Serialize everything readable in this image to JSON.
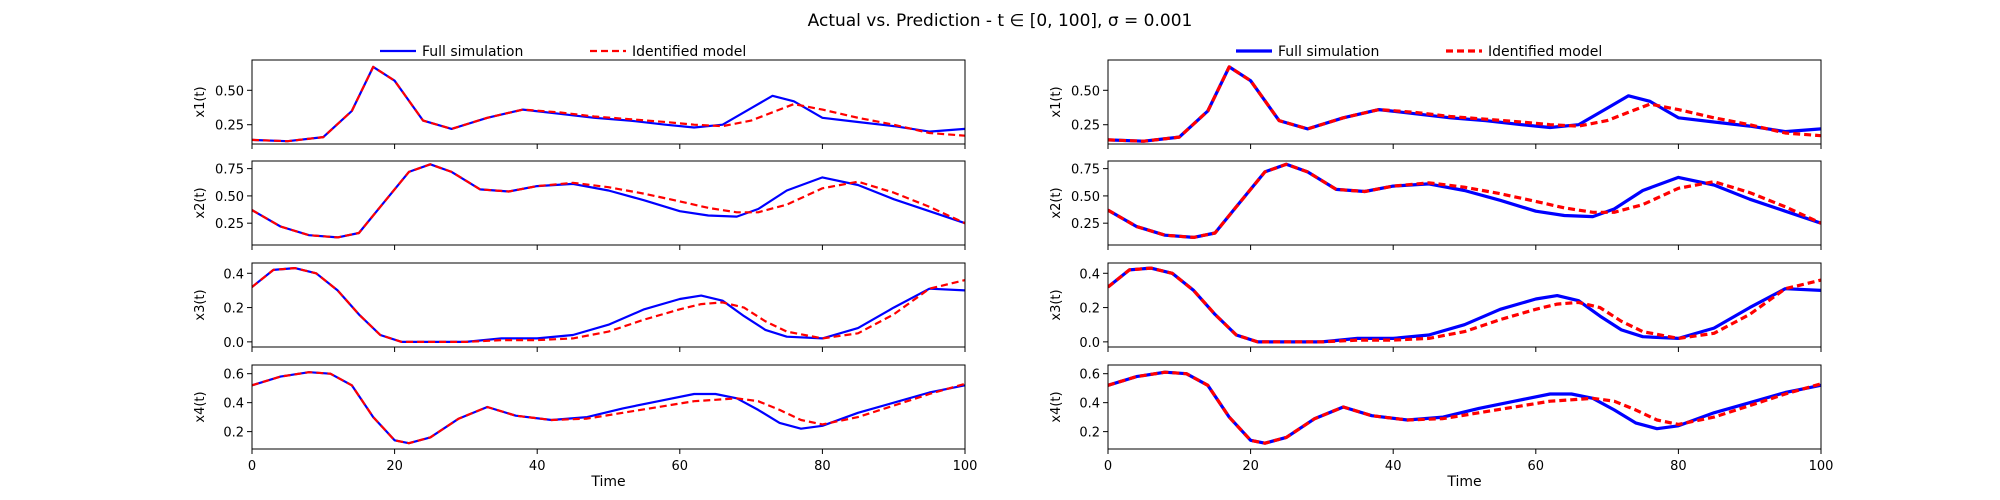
{
  "figure": {
    "title": "Actual vs. Prediction - t ∈ [0, 100], σ = 0.001"
  },
  "legend": {
    "entries": [
      {
        "label": "Full simulation",
        "color": "#0000ff",
        "style": "solid"
      },
      {
        "label": "Identified model",
        "color": "#ff0000",
        "style": "dashed"
      }
    ],
    "placement": "top-center"
  },
  "colors": {
    "full_simulation": "#0000ff",
    "identified_model": "#ff0000"
  },
  "chart_data": [
    {
      "type": "line",
      "column": "left",
      "xlabel": "Time",
      "xlim": [
        0,
        100
      ],
      "xticks": [
        0,
        20,
        40,
        60,
        80,
        100
      ],
      "line_width": "thin",
      "panels": [
        {
          "ylabel": "x1(t)",
          "ylim": [
            0.11,
            0.72
          ],
          "yticks": [
            0.25,
            0.5
          ],
          "x": [
            0,
            5,
            10,
            14,
            17,
            20,
            24,
            28,
            33,
            38,
            43,
            48,
            53,
            58,
            62,
            66,
            70,
            73,
            76,
            80,
            85,
            90,
            95,
            100
          ],
          "series": [
            {
              "name": "Full simulation",
              "values": [
                0.14,
                0.13,
                0.16,
                0.35,
                0.67,
                0.57,
                0.28,
                0.22,
                0.3,
                0.36,
                0.33,
                0.3,
                0.28,
                0.25,
                0.23,
                0.25,
                0.37,
                0.46,
                0.42,
                0.3,
                0.27,
                0.24,
                0.2,
                0.22
              ]
            },
            {
              "name": "Identified model",
              "values": [
                0.14,
                0.13,
                0.16,
                0.35,
                0.67,
                0.57,
                0.28,
                0.22,
                0.3,
                0.36,
                0.34,
                0.31,
                0.29,
                0.27,
                0.25,
                0.24,
                0.28,
                0.34,
                0.4,
                0.36,
                0.3,
                0.25,
                0.19,
                0.17
              ]
            }
          ]
        },
        {
          "ylabel": "x2(t)",
          "ylim": [
            0.05,
            0.82
          ],
          "yticks": [
            0.25,
            0.5,
            0.75
          ],
          "x": [
            0,
            4,
            8,
            12,
            15,
            18,
            22,
            25,
            28,
            32,
            36,
            40,
            45,
            50,
            55,
            60,
            64,
            68,
            71,
            75,
            80,
            85,
            90,
            95,
            100
          ],
          "series": [
            {
              "name": "Full simulation",
              "values": [
                0.37,
                0.22,
                0.14,
                0.12,
                0.16,
                0.4,
                0.72,
                0.79,
                0.72,
                0.56,
                0.54,
                0.59,
                0.61,
                0.55,
                0.46,
                0.36,
                0.32,
                0.31,
                0.38,
                0.55,
                0.67,
                0.6,
                0.47,
                0.36,
                0.25
              ]
            },
            {
              "name": "Identified model",
              "values": [
                0.37,
                0.22,
                0.14,
                0.12,
                0.16,
                0.4,
                0.72,
                0.79,
                0.72,
                0.56,
                0.54,
                0.59,
                0.62,
                0.58,
                0.52,
                0.45,
                0.39,
                0.35,
                0.35,
                0.42,
                0.57,
                0.63,
                0.53,
                0.4,
                0.25
              ]
            }
          ]
        },
        {
          "ylabel": "x3(t)",
          "ylim": [
            -0.03,
            0.46
          ],
          "yticks": [
            0.0,
            0.2,
            0.4
          ],
          "x": [
            0,
            3,
            6,
            9,
            12,
            15,
            18,
            21,
            25,
            30,
            35,
            40,
            45,
            50,
            55,
            60,
            63,
            66,
            69,
            72,
            75,
            80,
            85,
            90,
            95,
            100
          ],
          "series": [
            {
              "name": "Full simulation",
              "values": [
                0.32,
                0.42,
                0.43,
                0.4,
                0.3,
                0.16,
                0.04,
                0.0,
                0.0,
                0.0,
                0.02,
                0.02,
                0.04,
                0.1,
                0.19,
                0.25,
                0.27,
                0.24,
                0.15,
                0.07,
                0.03,
                0.02,
                0.08,
                0.2,
                0.31,
                0.3
              ]
            },
            {
              "name": "Identified model",
              "values": [
                0.32,
                0.42,
                0.43,
                0.4,
                0.3,
                0.16,
                0.04,
                0.0,
                0.0,
                0.0,
                0.01,
                0.01,
                0.02,
                0.06,
                0.13,
                0.19,
                0.22,
                0.23,
                0.2,
                0.12,
                0.06,
                0.02,
                0.05,
                0.16,
                0.31,
                0.36
              ]
            }
          ]
        },
        {
          "ylabel": "x4(t)",
          "ylim": [
            0.08,
            0.66
          ],
          "yticks": [
            0.2,
            0.4,
            0.6
          ],
          "x": [
            0,
            4,
            8,
            11,
            14,
            17,
            20,
            22,
            25,
            29,
            33,
            37,
            42,
            47,
            52,
            57,
            62,
            65,
            68,
            71,
            74,
            77,
            80,
            85,
            90,
            95,
            100
          ],
          "series": [
            {
              "name": "Full simulation",
              "values": [
                0.52,
                0.58,
                0.61,
                0.6,
                0.52,
                0.3,
                0.14,
                0.12,
                0.16,
                0.29,
                0.37,
                0.31,
                0.28,
                0.3,
                0.36,
                0.41,
                0.46,
                0.46,
                0.43,
                0.35,
                0.26,
                0.22,
                0.24,
                0.33,
                0.4,
                0.47,
                0.52
              ]
            },
            {
              "name": "Identified model",
              "values": [
                0.52,
                0.58,
                0.61,
                0.6,
                0.52,
                0.3,
                0.14,
                0.12,
                0.16,
                0.29,
                0.37,
                0.31,
                0.28,
                0.29,
                0.33,
                0.37,
                0.41,
                0.42,
                0.43,
                0.41,
                0.35,
                0.28,
                0.25,
                0.3,
                0.38,
                0.46,
                0.53
              ]
            }
          ]
        }
      ]
    },
    {
      "type": "line",
      "column": "right",
      "xlabel": "Time",
      "xlim": [
        0,
        100
      ],
      "xticks": [
        0,
        20,
        40,
        60,
        80,
        100
      ],
      "line_width": "thick",
      "panels": [
        {
          "ylabel": "x1(t)",
          "ylim": [
            0.11,
            0.72
          ],
          "yticks": [
            0.25,
            0.5
          ],
          "x": [
            0,
            5,
            10,
            14,
            17,
            20,
            24,
            28,
            33,
            38,
            43,
            48,
            53,
            58,
            62,
            66,
            70,
            73,
            76,
            80,
            85,
            90,
            95,
            100
          ],
          "series": [
            {
              "name": "Full simulation",
              "values": [
                0.14,
                0.13,
                0.16,
                0.35,
                0.67,
                0.57,
                0.28,
                0.22,
                0.3,
                0.36,
                0.33,
                0.3,
                0.28,
                0.25,
                0.23,
                0.25,
                0.37,
                0.46,
                0.42,
                0.3,
                0.27,
                0.24,
                0.2,
                0.22
              ]
            },
            {
              "name": "Identified model",
              "values": [
                0.14,
                0.13,
                0.16,
                0.35,
                0.67,
                0.57,
                0.28,
                0.22,
                0.3,
                0.36,
                0.34,
                0.31,
                0.29,
                0.27,
                0.25,
                0.24,
                0.28,
                0.34,
                0.4,
                0.36,
                0.3,
                0.25,
                0.19,
                0.17
              ]
            }
          ]
        },
        {
          "ylabel": "x2(t)",
          "ylim": [
            0.05,
            0.82
          ],
          "yticks": [
            0.25,
            0.5,
            0.75
          ],
          "x": [
            0,
            4,
            8,
            12,
            15,
            18,
            22,
            25,
            28,
            32,
            36,
            40,
            45,
            50,
            55,
            60,
            64,
            68,
            71,
            75,
            80,
            85,
            90,
            95,
            100
          ],
          "series": [
            {
              "name": "Full simulation",
              "values": [
                0.37,
                0.22,
                0.14,
                0.12,
                0.16,
                0.4,
                0.72,
                0.79,
                0.72,
                0.56,
                0.54,
                0.59,
                0.61,
                0.55,
                0.46,
                0.36,
                0.32,
                0.31,
                0.38,
                0.55,
                0.67,
                0.6,
                0.47,
                0.36,
                0.25
              ]
            },
            {
              "name": "Identified model",
              "values": [
                0.37,
                0.22,
                0.14,
                0.12,
                0.16,
                0.4,
                0.72,
                0.79,
                0.72,
                0.56,
                0.54,
                0.59,
                0.62,
                0.58,
                0.52,
                0.45,
                0.39,
                0.35,
                0.35,
                0.42,
                0.57,
                0.63,
                0.53,
                0.4,
                0.25
              ]
            }
          ]
        },
        {
          "ylabel": "x3(t)",
          "ylim": [
            -0.03,
            0.46
          ],
          "yticks": [
            0.0,
            0.2,
            0.4
          ],
          "x": [
            0,
            3,
            6,
            9,
            12,
            15,
            18,
            21,
            25,
            30,
            35,
            40,
            45,
            50,
            55,
            60,
            63,
            66,
            69,
            72,
            75,
            80,
            85,
            90,
            95,
            100
          ],
          "series": [
            {
              "name": "Full simulation",
              "values": [
                0.32,
                0.42,
                0.43,
                0.4,
                0.3,
                0.16,
                0.04,
                0.0,
                0.0,
                0.0,
                0.02,
                0.02,
                0.04,
                0.1,
                0.19,
                0.25,
                0.27,
                0.24,
                0.15,
                0.07,
                0.03,
                0.02,
                0.08,
                0.2,
                0.31,
                0.3
              ]
            },
            {
              "name": "Identified model",
              "values": [
                0.32,
                0.42,
                0.43,
                0.4,
                0.3,
                0.16,
                0.04,
                0.0,
                0.0,
                0.0,
                0.01,
                0.01,
                0.02,
                0.06,
                0.13,
                0.19,
                0.22,
                0.23,
                0.2,
                0.12,
                0.06,
                0.02,
                0.05,
                0.16,
                0.31,
                0.36
              ]
            }
          ]
        },
        {
          "ylabel": "x4(t)",
          "ylim": [
            0.08,
            0.66
          ],
          "yticks": [
            0.2,
            0.4,
            0.6
          ],
          "x": [
            0,
            4,
            8,
            11,
            14,
            17,
            20,
            22,
            25,
            29,
            33,
            37,
            42,
            47,
            52,
            57,
            62,
            65,
            68,
            71,
            74,
            77,
            80,
            85,
            90,
            95,
            100
          ],
          "series": [
            {
              "name": "Full simulation",
              "values": [
                0.52,
                0.58,
                0.61,
                0.6,
                0.52,
                0.3,
                0.14,
                0.12,
                0.16,
                0.29,
                0.37,
                0.31,
                0.28,
                0.3,
                0.36,
                0.41,
                0.46,
                0.46,
                0.43,
                0.35,
                0.26,
                0.22,
                0.24,
                0.33,
                0.4,
                0.47,
                0.52
              ]
            },
            {
              "name": "Identified model",
              "values": [
                0.52,
                0.58,
                0.61,
                0.6,
                0.52,
                0.3,
                0.14,
                0.12,
                0.16,
                0.29,
                0.37,
                0.31,
                0.28,
                0.29,
                0.33,
                0.37,
                0.41,
                0.42,
                0.43,
                0.41,
                0.35,
                0.28,
                0.25,
                0.3,
                0.38,
                0.46,
                0.53
              ]
            }
          ]
        }
      ]
    }
  ]
}
